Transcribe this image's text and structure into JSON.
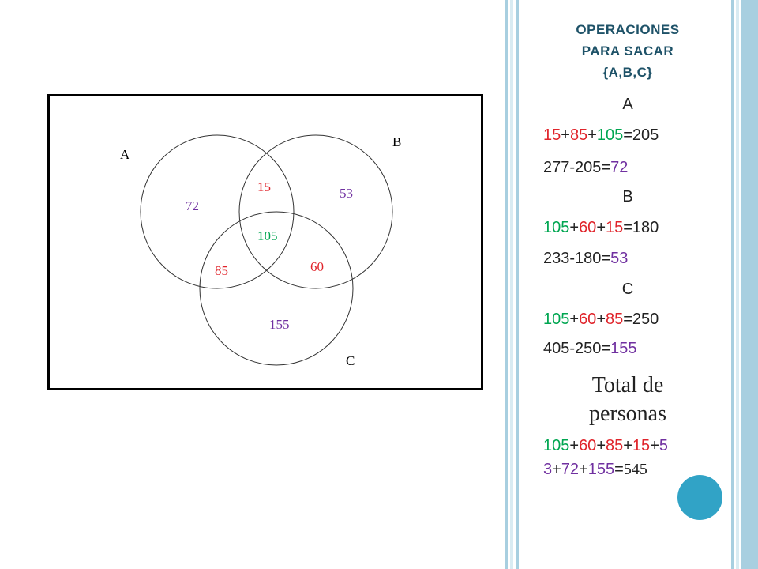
{
  "venn": {
    "labels": {
      "a": "A",
      "b": "B",
      "c": "C"
    },
    "regions": {
      "a_only": "72",
      "ab": "15",
      "b_only": "53",
      "abc": "105",
      "ac": "85",
      "bc": "60",
      "c_only": "155"
    }
  },
  "panel": {
    "heading": [
      "OPERACIONES",
      "PARA SACAR",
      "{A,B,C}"
    ],
    "a_title": "A",
    "a_sum": {
      "t1": "15",
      "p1": "+",
      "t2": "85",
      "p2": "+",
      "t3": "105",
      "res": "=205"
    },
    "a_diff": {
      "lhs": "277-205=",
      "res": "72"
    },
    "b_title": "B",
    "b_sum": {
      "t1": "105",
      "p1": "+",
      "t2": "60",
      "p2": "+",
      "t3": "15",
      "res": "=180"
    },
    "b_diff": {
      "lhs": "233-180=",
      "res": "53"
    },
    "c_title": "C",
    "c_sum": {
      "t1": "105",
      "p1": "+",
      "t2": "60",
      "p2": "+",
      "t3": "85",
      "res": "=250"
    },
    "c_diff": {
      "lhs": "405-250=",
      "res": "155"
    },
    "total_title": [
      "Total de",
      "personas"
    ],
    "total_line1": {
      "t1": "105",
      "p1": "+",
      "t2": "60",
      "p2": "+",
      "t3": "85",
      "p3": "+",
      "t4": "15",
      "p4": "+",
      "t5": "5"
    },
    "total_line2": {
      "t1": "3",
      "p1": "+",
      "t2": "72",
      "p2": "+",
      "t3": "155",
      "eq": "=",
      "res": "545"
    }
  },
  "colors": {
    "green": "#00a651",
    "red": "#e0242b",
    "purple": "#7030a0",
    "heading": "#1e5268",
    "accent_dot": "#31a3c6",
    "bar_light": "#a8cfe0"
  }
}
